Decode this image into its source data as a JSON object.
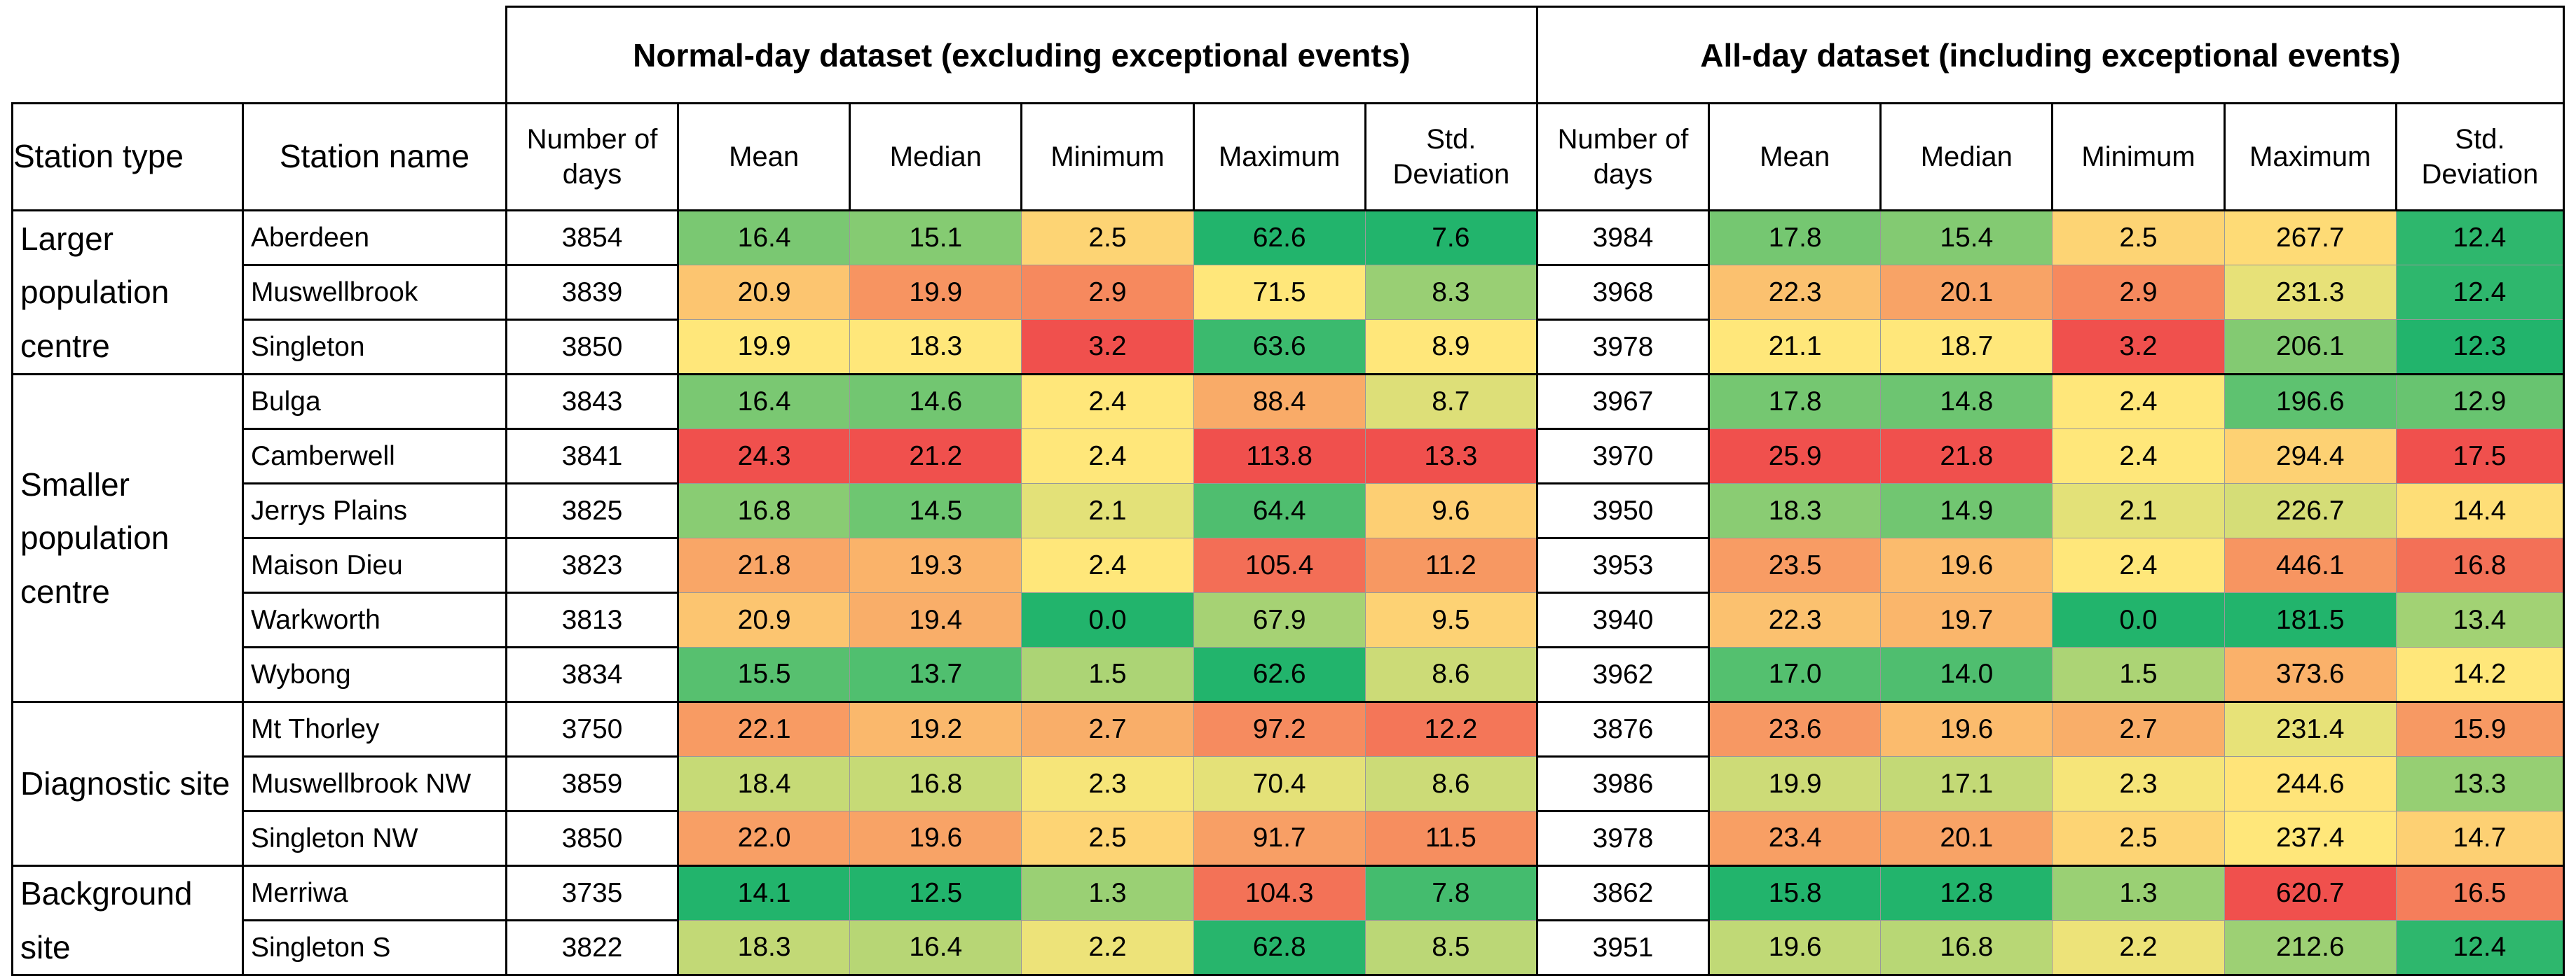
{
  "table": {
    "group_headers": {
      "normal": "Normal-day dataset (excluding exceptional events)",
      "all": "All-day dataset (including exceptional events)"
    },
    "column_headers": {
      "station_type": "Station type",
      "station_name": "Station name",
      "normal": [
        "Number of days",
        "Mean",
        "Median",
        "Minimum",
        "Maximum",
        "Std. Deviation"
      ],
      "all": [
        "Number of days",
        "Mean",
        "Median",
        "Minimum",
        "Maximum",
        "Std. Deviation"
      ]
    },
    "groups": [
      {
        "type": "Larger population centre",
        "rows": [
          {
            "name": "Aberdeen",
            "normal": [
              "3854",
              "16.4",
              "15.1",
              "2.5",
              "62.6",
              "7.6"
            ],
            "all": [
              "3984",
              "17.8",
              "15.4",
              "2.5",
              "267.7",
              "12.4"
            ]
          },
          {
            "name": "Muswellbrook",
            "normal": [
              "3839",
              "20.9",
              "19.9",
              "2.9",
              "71.5",
              "8.3"
            ],
            "all": [
              "3968",
              "22.3",
              "20.1",
              "2.9",
              "231.3",
              "12.4"
            ]
          },
          {
            "name": "Singleton",
            "normal": [
              "3850",
              "19.9",
              "18.3",
              "3.2",
              "63.6",
              "8.9"
            ],
            "all": [
              "3978",
              "21.1",
              "18.7",
              "3.2",
              "206.1",
              "12.3"
            ]
          }
        ]
      },
      {
        "type": "Smaller population centre",
        "rows": [
          {
            "name": "Bulga",
            "normal": [
              "3843",
              "16.4",
              "14.6",
              "2.4",
              "88.4",
              "8.7"
            ],
            "all": [
              "3967",
              "17.8",
              "14.8",
              "2.4",
              "196.6",
              "12.9"
            ]
          },
          {
            "name": "Camberwell",
            "normal": [
              "3841",
              "24.3",
              "21.2",
              "2.4",
              "113.8",
              "13.3"
            ],
            "all": [
              "3970",
              "25.9",
              "21.8",
              "2.4",
              "294.4",
              "17.5"
            ]
          },
          {
            "name": "Jerrys Plains",
            "normal": [
              "3825",
              "16.8",
              "14.5",
              "2.1",
              "64.4",
              "9.6"
            ],
            "all": [
              "3950",
              "18.3",
              "14.9",
              "2.1",
              "226.7",
              "14.4"
            ]
          },
          {
            "name": "Maison Dieu",
            "normal": [
              "3823",
              "21.8",
              "19.3",
              "2.4",
              "105.4",
              "11.2"
            ],
            "all": [
              "3953",
              "23.5",
              "19.6",
              "2.4",
              "446.1",
              "16.8"
            ]
          },
          {
            "name": "Warkworth",
            "normal": [
              "3813",
              "20.9",
              "19.4",
              "0.0",
              "67.9",
              "9.5"
            ],
            "all": [
              "3940",
              "22.3",
              "19.7",
              "0.0",
              "181.5",
              "13.4"
            ]
          },
          {
            "name": "Wybong",
            "normal": [
              "3834",
              "15.5",
              "13.7",
              "1.5",
              "62.6",
              "8.6"
            ],
            "all": [
              "3962",
              "17.0",
              "14.0",
              "1.5",
              "373.6",
              "14.2"
            ]
          }
        ]
      },
      {
        "type": "Diagnostic site",
        "rows": [
          {
            "name": "Mt Thorley",
            "normal": [
              "3750",
              "22.1",
              "19.2",
              "2.7",
              "97.2",
              "12.2"
            ],
            "all": [
              "3876",
              "23.6",
              "19.6",
              "2.7",
              "231.4",
              "15.9"
            ]
          },
          {
            "name": "Muswellbrook NW",
            "normal": [
              "3859",
              "18.4",
              "16.8",
              "2.3",
              "70.4",
              "8.6"
            ],
            "all": [
              "3986",
              "19.9",
              "17.1",
              "2.3",
              "244.6",
              "13.3"
            ]
          },
          {
            "name": "Singleton NW",
            "normal": [
              "3850",
              "22.0",
              "19.6",
              "2.5",
              "91.7",
              "11.5"
            ],
            "all": [
              "3978",
              "23.4",
              "20.1",
              "2.5",
              "237.4",
              "14.7"
            ]
          }
        ]
      },
      {
        "type": "Background site",
        "rows": [
          {
            "name": "Merriwa",
            "normal": [
              "3735",
              "14.1",
              "12.5",
              "1.3",
              "104.3",
              "7.8"
            ],
            "all": [
              "3862",
              "15.8",
              "12.8",
              "1.3",
              "620.7",
              "16.5"
            ]
          },
          {
            "name": "Singleton S",
            "normal": [
              "3822",
              "18.3",
              "16.4",
              "2.2",
              "62.8",
              "8.5"
            ],
            "all": [
              "3951",
              "19.6",
              "16.8",
              "2.2",
              "212.6",
              "12.4"
            ]
          }
        ]
      }
    ],
    "colors": {
      "scale_low": "#22b46c",
      "scale_mid": "#ffe77a",
      "scale_high": "#f0504d"
    }
  }
}
